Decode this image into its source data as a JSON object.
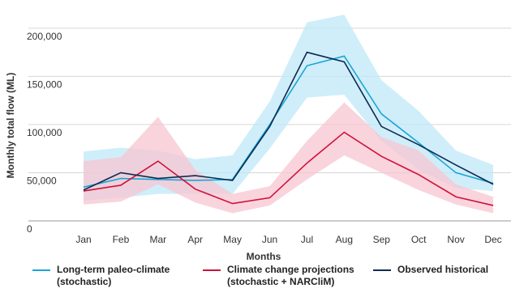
{
  "chart_data": {
    "type": "line",
    "y_label": "Monthly total flow (ML)",
    "x_label": "Months",
    "categories": [
      "Jan",
      "Feb",
      "Mar",
      "Apr",
      "May",
      "Jun",
      "Jul",
      "Aug",
      "Sep",
      "Oct",
      "Nov",
      "Dec"
    ],
    "ylim": [
      0,
      220000
    ],
    "yticks": [
      0,
      {
        "value": 50000,
        "label": "50,000"
      },
      {
        "value": 100000,
        "label": "100,000"
      },
      {
        "value": 150000,
        "label": "150,000"
      },
      {
        "value": 200000,
        "label": "200,000"
      }
    ],
    "grid": true,
    "legend": "bottom",
    "series": [
      {
        "name": "Long-term paleo-climate (stochastic)",
        "color": "#1ba6d6",
        "band_color": "#bfe8f8",
        "values": [
          35000,
          44000,
          43000,
          42000,
          43000,
          100000,
          161000,
          171000,
          111000,
          81000,
          50000,
          39000
        ],
        "lower": [
          21000,
          24000,
          28000,
          28000,
          28000,
          75000,
          128000,
          131000,
          83000,
          53000,
          34000,
          31000
        ],
        "upper": [
          72000,
          76000,
          73000,
          64000,
          68000,
          124000,
          206000,
          214000,
          146000,
          114000,
          73000,
          58000
        ]
      },
      {
        "name": "Climate change projections (stochastic + NARCliM)",
        "color": "#d0103a",
        "band_color": "#f7c6d0",
        "values": [
          31000,
          37000,
          62000,
          33000,
          18000,
          24000,
          60000,
          92000,
          67000,
          48000,
          25000,
          16000
        ],
        "lower": [
          17000,
          20000,
          38000,
          19000,
          8000,
          16000,
          43000,
          68000,
          50000,
          32000,
          17000,
          8000
        ],
        "upper": [
          62000,
          66000,
          108000,
          53000,
          28000,
          36000,
          83000,
          123000,
          87000,
          73000,
          38000,
          25000
        ]
      },
      {
        "name": "Observed historical",
        "color": "#0e2a4f",
        "values": [
          32000,
          50000,
          44000,
          47000,
          42000,
          98000,
          175000,
          165000,
          98000,
          79000,
          58000,
          38000
        ]
      }
    ]
  }
}
